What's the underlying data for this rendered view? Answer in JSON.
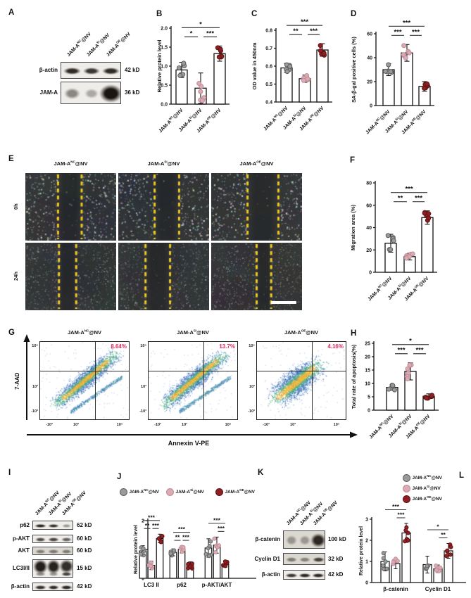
{
  "conditions": [
    {
      "base": "JAM-A",
      "sup": "NC",
      "tail": "@NV",
      "fill": "#9a9a9a",
      "edge": "#5e5e5e"
    },
    {
      "base": "JAM-A",
      "sup": "Si",
      "tail": "@NV",
      "fill": "#dcaab3",
      "edge": "#c08c97"
    },
    {
      "base": "JAM-A",
      "sup": "OE",
      "tail": "@NV",
      "fill": "#8e2023",
      "edge": "#5f1113"
    }
  ],
  "panels": {
    "A": {
      "letter": "A",
      "rows": [
        {
          "name": "β-actin",
          "kd": "42 kD",
          "bands": [
            0.88,
            0.8,
            0.88
          ]
        },
        {
          "name": "JAM-A",
          "kd": "36 kD",
          "bands": [
            0.32,
            0.12,
            1.0
          ],
          "blob": true
        }
      ]
    },
    "E": {
      "letter": "E",
      "row_labels": [
        "0h",
        "24h"
      ],
      "gaps_0h": [
        [
          0.36,
          0.62
        ],
        [
          0.4,
          0.67
        ],
        [
          0.4,
          0.74
        ]
      ],
      "gaps_24h": [
        [
          0.37,
          0.56
        ],
        [
          0.3,
          0.57
        ],
        [
          0.5,
          0.66
        ]
      ],
      "scalebar": true
    },
    "G": {
      "letter": "G",
      "xlabel": "Annexin V-PE",
      "ylabel": "7-AAD",
      "yticks": [
        "10⁵",
        "10³",
        "-10³"
      ],
      "xticks": [
        "-10³",
        "10³",
        "10⁵"
      ],
      "percent_color": "#e8265c",
      "plots": [
        {
          "percent": "8.64%"
        },
        {
          "percent": "13.7%"
        },
        {
          "percent": "4.16%"
        }
      ]
    },
    "I": {
      "letter": "I",
      "rows": [
        {
          "name": "p62",
          "kd": "62 kD",
          "bands": [
            0.92,
            0.85,
            0.22
          ]
        },
        {
          "name": "p-AKT",
          "kd": "60 kD",
          "bands": [
            0.68,
            0.72,
            0.55
          ]
        },
        {
          "name": "AKT",
          "kd": "60 kD",
          "bands": [
            0.5,
            0.55,
            0.52
          ],
          "noisy": true
        },
        {
          "name": "LC3I/II",
          "kd": "15 kD",
          "bands": [
            0.95,
            0.92,
            0.85
          ],
          "bands2": [
            0.35,
            0.3,
            0.8
          ],
          "blob": true
        },
        {
          "name": "β-actin",
          "kd": "42 kD",
          "bands": [
            0.85,
            0.88,
            0.9
          ]
        }
      ]
    },
    "K": {
      "letter": "K",
      "rows": [
        {
          "name": "β-catenin",
          "kd": "100 kD",
          "bands": [
            0.3,
            0.28,
            0.88
          ],
          "blob": true,
          "noisy": true
        },
        {
          "name": "Cyclin D1",
          "kd": "32 kD",
          "bands": [
            0.52,
            0.45,
            0.72
          ],
          "noisy": true
        },
        {
          "name": "β-actin",
          "kd": "42 kD",
          "bands": [
            0.8,
            0.9,
            0.9
          ]
        }
      ]
    }
  },
  "chart_data": [
    {
      "id": "B",
      "panel_letter": "B",
      "type": "bar",
      "ylabel": "Relative protein level",
      "ytick_labels": [
        "0.0",
        "0.5",
        "1.0",
        "1.5",
        "2.0"
      ],
      "ymin": 0,
      "ymax": 2,
      "values": [
        0.9,
        0.42,
        1.33
      ],
      "errors": [
        0.2,
        0.4,
        0.2
      ],
      "significance": [
        {
          "a": 0,
          "b": 1,
          "label": "*",
          "row": 0
        },
        {
          "a": 1,
          "b": 2,
          "label": "***",
          "row": 0
        },
        {
          "a": 0,
          "b": 2,
          "label": "*",
          "row": 1
        }
      ]
    },
    {
      "id": "C",
      "panel_letter": "C",
      "type": "bar",
      "ylabel": "OD value in 450nm",
      "ytick_labels": [
        "0.4",
        "0.5",
        "0.6",
        "0.7",
        "0.8"
      ],
      "ymin": 0.4,
      "ymax": 0.8,
      "values": [
        0.59,
        0.53,
        0.69
      ],
      "errors": [
        0.025,
        0.02,
        0.035
      ],
      "significance": [
        {
          "a": 0,
          "b": 1,
          "label": "**",
          "row": 0
        },
        {
          "a": 1,
          "b": 2,
          "label": "***",
          "row": 0
        },
        {
          "a": 0,
          "b": 2,
          "label": "***",
          "row": 1
        }
      ]
    },
    {
      "id": "D",
      "panel_letter": "D",
      "type": "bar",
      "ylabel": "SA-β-gal positive cells (%)",
      "ytick_labels": [
        "0",
        "20",
        "40",
        "60"
      ],
      "ymin": 0,
      "ymax": 60,
      "values": [
        30,
        44,
        16
      ],
      "errors": [
        5,
        7,
        4
      ],
      "significance": [
        {
          "a": 0,
          "b": 1,
          "label": "***",
          "row": 0
        },
        {
          "a": 1,
          "b": 2,
          "label": "***",
          "row": 0
        },
        {
          "a": 0,
          "b": 2,
          "label": "***",
          "row": 1
        }
      ]
    },
    {
      "id": "F",
      "panel_letter": "F",
      "type": "bar",
      "ylabel": "Migration area (%)",
      "ytick_labels": [
        "0",
        "20",
        "40",
        "60",
        "80"
      ],
      "ymin": 0,
      "ymax": 80,
      "values": [
        26,
        14,
        49
      ],
      "errors": [
        8,
        3,
        6
      ],
      "significance": [
        {
          "a": 0,
          "b": 1,
          "label": "**",
          "row": 0
        },
        {
          "a": 1,
          "b": 2,
          "label": "***",
          "row": 0
        },
        {
          "a": 0,
          "b": 2,
          "label": "***",
          "row": 1
        }
      ]
    },
    {
      "id": "H",
      "panel_letter": "H",
      "type": "bar",
      "ylabel": "Total rate of apoptosis(%)",
      "ytick_labels": [
        "0",
        "5",
        "10",
        "15",
        "20",
        "25"
      ],
      "ymin": 0,
      "ymax": 25,
      "values": [
        8.5,
        14.5,
        5.2
      ],
      "errors": [
        1,
        3.2,
        0.9
      ],
      "significance": [
        {
          "a": 0,
          "b": 1,
          "label": "***",
          "row": 0
        },
        {
          "a": 1,
          "b": 2,
          "label": "***",
          "row": 0
        },
        {
          "a": 0,
          "b": 2,
          "label": "*",
          "row": 1
        }
      ]
    },
    {
      "id": "J",
      "panel_letter": "J",
      "type": "grouped-bar",
      "ylabel": "Relative protein level",
      "ytick_labels": [
        "0",
        "1",
        "2"
      ],
      "ymin": 0,
      "ymax": 2,
      "legend": "inline",
      "categories": [
        "LC3 II",
        "p62",
        "p-AKT/AKT"
      ],
      "series": [
        {
          "condition": 0,
          "values": [
            0.95,
            0.9,
            1.05
          ],
          "errors": [
            0.18,
            0.12,
            0.32
          ]
        },
        {
          "condition": 1,
          "values": [
            0.45,
            1.0,
            1.15
          ],
          "errors": [
            0.15,
            0.12,
            0.28
          ]
        },
        {
          "condition": 2,
          "values": [
            1.38,
            0.45,
            0.5
          ],
          "errors": [
            0.15,
            0.12,
            0.12
          ]
        }
      ],
      "significance": [
        {
          "cat": 0,
          "a": 0,
          "b": 1,
          "label": "**",
          "row": 0
        },
        {
          "cat": 0,
          "a": 1,
          "b": 2,
          "label": "***",
          "row": 0
        },
        {
          "cat": 0,
          "a": 0,
          "b": 2,
          "label": "***",
          "row": 1
        },
        {
          "cat": 1,
          "a": 0,
          "b": 1,
          "label": "**",
          "row": 0
        },
        {
          "cat": 1,
          "a": 1,
          "b": 2,
          "label": "***",
          "row": 0
        },
        {
          "cat": 1,
          "a": 0,
          "b": 2,
          "label": "***",
          "row": 1
        },
        {
          "cat": 2,
          "a": 1,
          "b": 2,
          "label": "***",
          "row": 0
        },
        {
          "cat": 2,
          "a": 0,
          "b": 2,
          "label": "***",
          "row": 1
        }
      ]
    },
    {
      "id": "L",
      "panel_letter": "L",
      "type": "grouped-bar",
      "ylabel": "Relative protein level",
      "ytick_labels": [
        "0",
        "1",
        "2",
        "3"
      ],
      "ymin": 0,
      "ymax": 3,
      "legend": "stack",
      "categories": [
        "β-catenin",
        "Cyclin D1"
      ],
      "series": [
        {
          "condition": 0,
          "values": [
            1.0,
            0.85
          ],
          "errors": [
            0.45,
            0.4
          ]
        },
        {
          "condition": 1,
          "values": [
            0.9,
            0.65
          ],
          "errors": [
            0.25,
            0.18
          ]
        },
        {
          "condition": 2,
          "values": [
            2.35,
            1.5
          ],
          "errors": [
            0.45,
            0.35
          ]
        }
      ],
      "significance": [
        {
          "cat": 0,
          "a": 1,
          "b": 2,
          "label": "***",
          "row": 0
        },
        {
          "cat": 0,
          "a": 0,
          "b": 2,
          "label": "***",
          "row": 1
        },
        {
          "cat": 1,
          "a": 1,
          "b": 2,
          "label": "**",
          "row": 0
        },
        {
          "cat": 1,
          "a": 0,
          "b": 2,
          "label": "*",
          "row": 1
        }
      ]
    }
  ]
}
